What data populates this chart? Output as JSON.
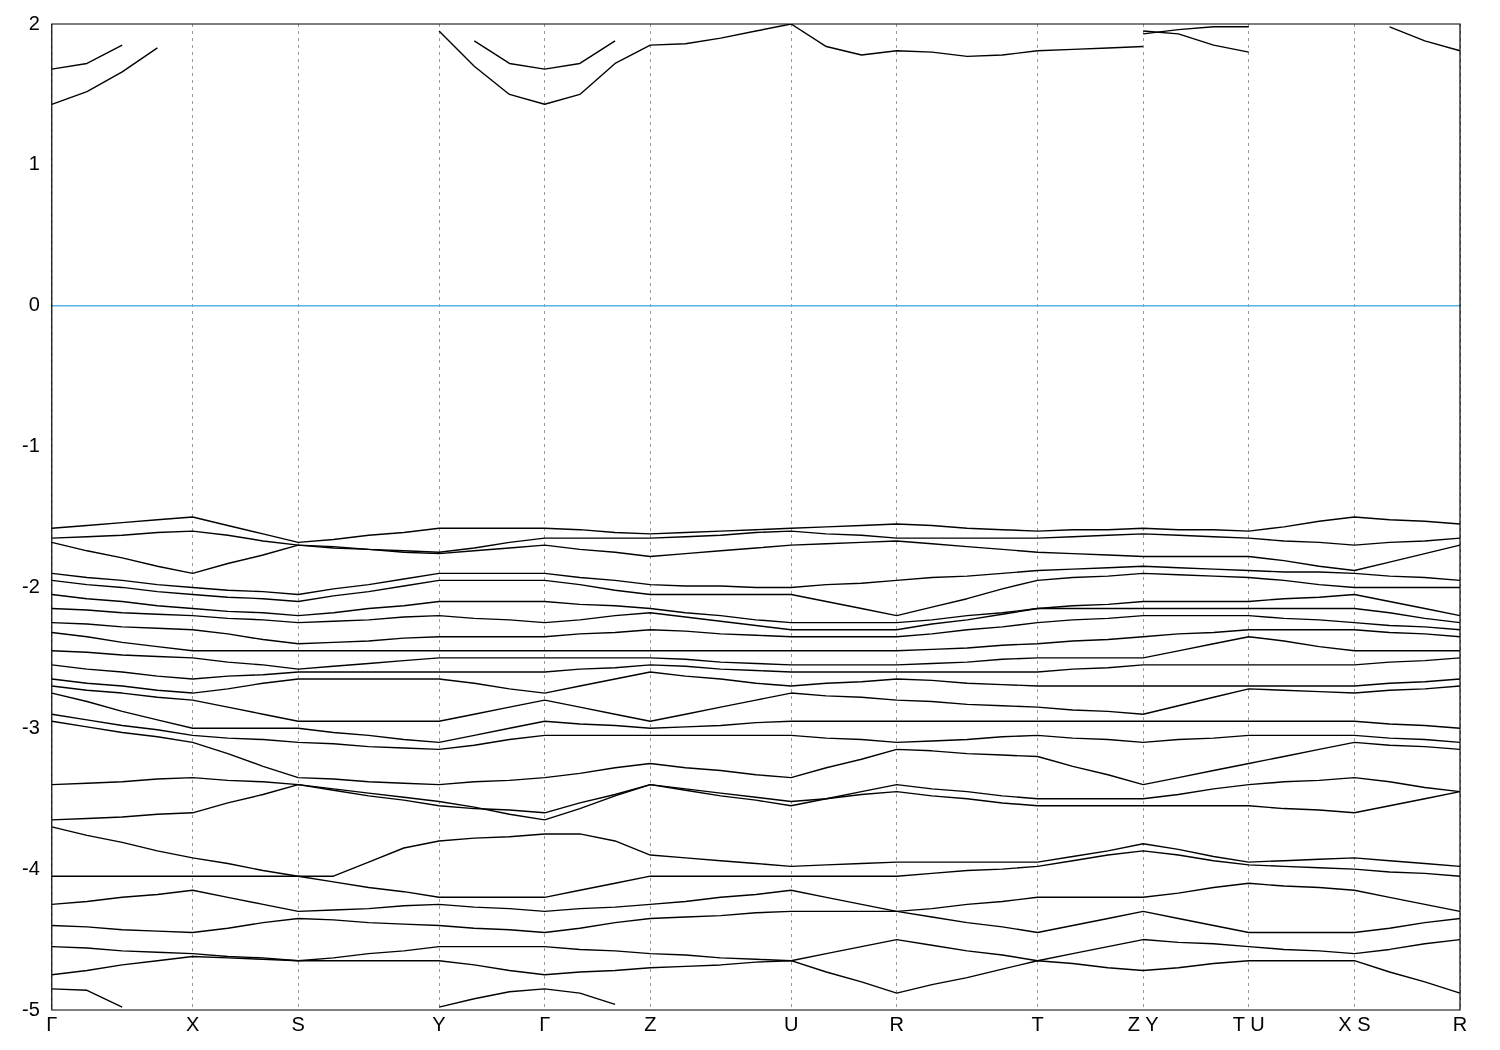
{
  "chart_data": {
    "type": "line",
    "ylim": [
      -5,
      2
    ],
    "categories": [
      "Γ",
      null,
      null,
      null,
      "X",
      null,
      null,
      "S",
      null,
      null,
      null,
      "Y",
      null,
      null,
      "Γ",
      null,
      null,
      "Z",
      null,
      null,
      null,
      "U",
      null,
      null,
      "R",
      null,
      null,
      null,
      "T",
      null,
      null,
      "Z Y",
      null,
      null,
      "T U",
      null,
      null,
      "X S",
      null,
      null,
      "R"
    ],
    "yticks": [
      -5,
      -4,
      -3,
      -2,
      -1,
      0,
      1,
      2
    ],
    "grid": "x",
    "marker": "none",
    "line_style": "solid",
    "ref_lines": [
      {
        "axis": "y",
        "value": 0,
        "color": "#56b4e9"
      }
    ],
    "series": [
      {
        "color": "#000000",
        "values": [
          1.43,
          1.52,
          1.66,
          1.83,
          null,
          null,
          null,
          null,
          null,
          null,
          null,
          null,
          null,
          null,
          null,
          null,
          null,
          null,
          null,
          null,
          null,
          null,
          null,
          null,
          null,
          null,
          null,
          null,
          null,
          null,
          null,
          null,
          null,
          null,
          null,
          null,
          null,
          null,
          null,
          null,
          null
        ]
      },
      {
        "color": "#000000",
        "values": [
          1.68,
          1.72,
          1.85,
          null,
          null,
          null,
          null,
          null,
          null,
          null,
          null,
          null,
          null,
          null,
          null,
          null,
          null,
          null,
          null,
          null,
          null,
          null,
          null,
          null,
          null,
          null,
          null,
          null,
          null,
          null,
          null,
          null,
          null,
          null,
          null,
          null,
          null,
          null,
          null,
          null,
          null
        ]
      },
      {
        "color": "#000000",
        "values": [
          null,
          null,
          null,
          null,
          null,
          null,
          null,
          null,
          null,
          null,
          null,
          1.95,
          1.7,
          1.5,
          1.43,
          1.5,
          1.72,
          1.85,
          1.86,
          1.9,
          1.95,
          2.0,
          1.84,
          1.78,
          1.81,
          1.8,
          1.77,
          1.78,
          1.81,
          1.82,
          1.83,
          1.84,
          null,
          null,
          null,
          null,
          null,
          null,
          null,
          null,
          null
        ]
      },
      {
        "color": "#000000",
        "values": [
          null,
          null,
          null,
          null,
          null,
          null,
          null,
          null,
          null,
          null,
          null,
          null,
          1.88,
          1.72,
          1.68,
          1.72,
          1.88,
          null,
          null,
          null,
          null,
          null,
          null,
          null,
          null,
          null,
          null,
          null,
          null,
          null,
          null,
          null,
          null,
          null,
          null,
          null,
          null,
          null,
          null,
          null,
          null
        ]
      },
      {
        "color": "#000000",
        "values": [
          null,
          null,
          null,
          null,
          null,
          null,
          null,
          null,
          null,
          null,
          null,
          null,
          null,
          null,
          null,
          null,
          null,
          null,
          null,
          null,
          null,
          null,
          null,
          null,
          null,
          null,
          null,
          null,
          null,
          null,
          null,
          1.95,
          1.93,
          1.85,
          1.8,
          null,
          null,
          null,
          null,
          null,
          null
        ]
      },
      {
        "color": "#000000",
        "values": [
          null,
          null,
          null,
          null,
          null,
          null,
          null,
          null,
          null,
          null,
          null,
          null,
          null,
          null,
          null,
          null,
          null,
          null,
          null,
          null,
          null,
          null,
          null,
          null,
          null,
          null,
          null,
          null,
          null,
          null,
          null,
          1.93,
          1.96,
          1.98,
          1.98,
          null,
          null,
          null,
          null,
          null,
          null
        ]
      },
      {
        "color": "#000000",
        "values": [
          null,
          null,
          null,
          null,
          null,
          null,
          null,
          null,
          null,
          null,
          null,
          null,
          null,
          null,
          null,
          null,
          null,
          null,
          null,
          null,
          null,
          null,
          null,
          null,
          null,
          null,
          null,
          null,
          null,
          null,
          null,
          null,
          null,
          null,
          null,
          null,
          null,
          null,
          1.98,
          1.88,
          1.81
        ]
      },
      {
        "color": "#000000",
        "values": [
          -1.58,
          -1.56,
          -1.54,
          -1.52,
          -1.5,
          -1.56,
          -1.62,
          -1.68,
          -1.66,
          -1.63,
          -1.61,
          -1.58,
          -1.58,
          -1.58,
          -1.58,
          -1.59,
          -1.61,
          -1.62,
          -1.61,
          -1.6,
          -1.59,
          -1.58,
          -1.57,
          -1.56,
          -1.55,
          -1.56,
          -1.58,
          -1.59,
          -1.6,
          -1.59,
          -1.59,
          -1.58,
          -1.59,
          -1.59,
          -1.6,
          -1.57,
          -1.53,
          -1.5,
          -1.52,
          -1.53,
          -1.55
        ]
      },
      {
        "color": "#000000",
        "values": [
          -1.65,
          -1.64,
          -1.63,
          -1.61,
          -1.6,
          -1.63,
          -1.67,
          -1.7,
          -1.71,
          -1.73,
          -1.74,
          -1.75,
          -1.72,
          -1.68,
          -1.65,
          -1.65,
          -1.65,
          -1.65,
          -1.64,
          -1.63,
          -1.61,
          -1.6,
          -1.62,
          -1.63,
          -1.65,
          -1.65,
          -1.65,
          -1.65,
          -1.65,
          -1.64,
          -1.63,
          -1.62,
          -1.63,
          -1.64,
          -1.65,
          -1.67,
          -1.68,
          -1.7,
          -1.68,
          -1.67,
          -1.65
        ]
      },
      {
        "color": "#000000",
        "values": [
          -1.68,
          -1.74,
          -1.79,
          -1.85,
          -1.9,
          -1.83,
          -1.77,
          -1.7,
          -1.72,
          -1.73,
          -1.75,
          -1.76,
          -1.74,
          -1.72,
          -1.7,
          -1.73,
          -1.75,
          -1.78,
          -1.76,
          -1.74,
          -1.72,
          -1.7,
          -1.69,
          -1.68,
          -1.67,
          -1.69,
          -1.71,
          -1.73,
          -1.75,
          -1.76,
          -1.77,
          -1.78,
          -1.78,
          -1.78,
          -1.78,
          -1.81,
          -1.85,
          -1.88,
          -1.82,
          -1.76,
          -1.7
        ]
      },
      {
        "color": "#000000",
        "values": [
          -1.9,
          -1.93,
          -1.95,
          -1.98,
          -2.0,
          -2.02,
          -2.03,
          -2.05,
          -2.01,
          -1.98,
          -1.94,
          -1.9,
          -1.9,
          -1.9,
          -1.9,
          -1.93,
          -1.95,
          -1.98,
          -1.99,
          -1.99,
          -2.0,
          -2.0,
          -1.98,
          -1.97,
          -1.95,
          -1.93,
          -1.92,
          -1.9,
          -1.88,
          -1.87,
          -1.86,
          -1.85,
          -1.86,
          -1.87,
          -1.88,
          -1.89,
          -1.89,
          -1.9,
          -1.92,
          -1.93,
          -1.95
        ]
      },
      {
        "color": "#000000",
        "values": [
          -1.95,
          -1.98,
          -2.0,
          -2.03,
          -2.05,
          -2.07,
          -2.08,
          -2.1,
          -2.06,
          -2.03,
          -1.99,
          -1.95,
          -1.95,
          -1.95,
          -1.95,
          -1.98,
          -2.02,
          -2.05,
          -2.05,
          -2.05,
          -2.05,
          -2.05,
          -2.1,
          -2.15,
          -2.2,
          -2.14,
          -2.08,
          -2.01,
          -1.95,
          -1.93,
          -1.92,
          -1.9,
          -1.91,
          -1.92,
          -1.93,
          -1.95,
          -1.98,
          -2.0,
          -2.0,
          -2.0,
          -2.0
        ]
      },
      {
        "color": "#000000",
        "values": [
          -2.05,
          -2.08,
          -2.1,
          -2.13,
          -2.15,
          -2.17,
          -2.18,
          -2.2,
          -2.18,
          -2.15,
          -2.13,
          -2.1,
          -2.1,
          -2.1,
          -2.1,
          -2.12,
          -2.13,
          -2.15,
          -2.18,
          -2.2,
          -2.23,
          -2.25,
          -2.25,
          -2.25,
          -2.25,
          -2.23,
          -2.2,
          -2.18,
          -2.15,
          -2.13,
          -2.12,
          -2.1,
          -2.1,
          -2.1,
          -2.1,
          -2.08,
          -2.07,
          -2.05,
          -2.1,
          -2.15,
          -2.2
        ]
      },
      {
        "color": "#000000",
        "values": [
          -2.15,
          -2.16,
          -2.18,
          -2.19,
          -2.2,
          -2.22,
          -2.23,
          -2.25,
          -2.24,
          -2.23,
          -2.21,
          -2.2,
          -2.22,
          -2.23,
          -2.25,
          -2.23,
          -2.2,
          -2.18,
          -2.21,
          -2.24,
          -2.27,
          -2.3,
          -2.3,
          -2.3,
          -2.3,
          -2.26,
          -2.23,
          -2.19,
          -2.15,
          -2.15,
          -2.15,
          -2.15,
          -2.15,
          -2.15,
          -2.15,
          -2.15,
          -2.15,
          -2.15,
          -2.18,
          -2.22,
          -2.25
        ]
      },
      {
        "color": "#000000",
        "values": [
          -2.25,
          -2.26,
          -2.28,
          -2.29,
          -2.3,
          -2.33,
          -2.37,
          -2.4,
          -2.39,
          -2.38,
          -2.36,
          -2.35,
          -2.35,
          -2.35,
          -2.35,
          -2.33,
          -2.32,
          -2.3,
          -2.31,
          -2.33,
          -2.34,
          -2.35,
          -2.35,
          -2.35,
          -2.35,
          -2.33,
          -2.3,
          -2.28,
          -2.25,
          -2.23,
          -2.22,
          -2.2,
          -2.2,
          -2.2,
          -2.2,
          -2.22,
          -2.23,
          -2.25,
          -2.27,
          -2.28,
          -2.3
        ]
      },
      {
        "color": "#000000",
        "values": [
          -2.32,
          -2.35,
          -2.39,
          -2.42,
          -2.45,
          -2.45,
          -2.45,
          -2.45,
          -2.45,
          -2.45,
          -2.45,
          -2.45,
          -2.45,
          -2.45,
          -2.45,
          -2.45,
          -2.45,
          -2.45,
          -2.45,
          -2.45,
          -2.45,
          -2.45,
          -2.45,
          -2.45,
          -2.45,
          -2.44,
          -2.43,
          -2.41,
          -2.4,
          -2.38,
          -2.37,
          -2.35,
          -2.33,
          -2.32,
          -2.3,
          -2.3,
          -2.3,
          -2.3,
          -2.32,
          -2.33,
          -2.35
        ]
      },
      {
        "color": "#000000",
        "values": [
          -2.45,
          -2.46,
          -2.48,
          -2.49,
          -2.5,
          -2.53,
          -2.55,
          -2.58,
          -2.56,
          -2.54,
          -2.52,
          -2.5,
          -2.5,
          -2.5,
          -2.5,
          -2.5,
          -2.5,
          -2.5,
          -2.51,
          -2.53,
          -2.54,
          -2.55,
          -2.55,
          -2.55,
          -2.55,
          -2.54,
          -2.53,
          -2.51,
          -2.5,
          -2.5,
          -2.5,
          -2.5,
          -2.45,
          -2.4,
          -2.35,
          -2.38,
          -2.42,
          -2.45,
          -2.45,
          -2.45,
          -2.45
        ]
      },
      {
        "color": "#000000",
        "values": [
          -2.55,
          -2.58,
          -2.6,
          -2.63,
          -2.65,
          -2.63,
          -2.62,
          -2.6,
          -2.6,
          -2.6,
          -2.6,
          -2.6,
          -2.6,
          -2.6,
          -2.6,
          -2.58,
          -2.57,
          -2.55,
          -2.56,
          -2.58,
          -2.59,
          -2.6,
          -2.6,
          -2.6,
          -2.6,
          -2.6,
          -2.6,
          -2.6,
          -2.6,
          -2.58,
          -2.57,
          -2.55,
          -2.55,
          -2.55,
          -2.55,
          -2.55,
          -2.55,
          -2.55,
          -2.53,
          -2.52,
          -2.5
        ]
      },
      {
        "color": "#000000",
        "values": [
          -2.65,
          -2.68,
          -2.7,
          -2.73,
          -2.75,
          -2.72,
          -2.68,
          -2.65,
          -2.65,
          -2.65,
          -2.65,
          -2.65,
          -2.68,
          -2.72,
          -2.75,
          -2.7,
          -2.65,
          -2.6,
          -2.63,
          -2.65,
          -2.68,
          -2.7,
          -2.68,
          -2.67,
          -2.65,
          -2.66,
          -2.68,
          -2.69,
          -2.7,
          -2.7,
          -2.7,
          -2.7,
          -2.7,
          -2.7,
          -2.7,
          -2.7,
          -2.7,
          -2.7,
          -2.68,
          -2.67,
          -2.65
        ]
      },
      {
        "color": "#000000",
        "values": [
          -2.7,
          -2.73,
          -2.75,
          -2.78,
          -2.8,
          -2.85,
          -2.9,
          -2.95,
          -2.95,
          -2.95,
          -2.95,
          -2.95,
          -2.9,
          -2.85,
          -2.8,
          -2.85,
          -2.9,
          -2.95,
          -2.9,
          -2.85,
          -2.8,
          -2.75,
          -2.77,
          -2.78,
          -2.8,
          -2.81,
          -2.83,
          -2.84,
          -2.85,
          -2.87,
          -2.88,
          -2.9,
          -2.84,
          -2.78,
          -2.72,
          -2.73,
          -2.74,
          -2.75,
          -2.73,
          -2.72,
          -2.7
        ]
      },
      {
        "color": "#000000",
        "values": [
          -2.75,
          -2.81,
          -2.88,
          -2.94,
          -3.0,
          -3.0,
          -3.0,
          -3.0,
          -3.03,
          -3.05,
          -3.08,
          -3.1,
          -3.05,
          -3.0,
          -2.95,
          -2.97,
          -2.98,
          -3.0,
          -2.99,
          -2.98,
          -2.96,
          -2.95,
          -2.95,
          -2.95,
          -2.95,
          -2.95,
          -2.95,
          -2.95,
          -2.95,
          -2.95,
          -2.95,
          -2.95,
          -2.95,
          -2.95,
          -2.95,
          -2.95,
          -2.95,
          -2.95,
          -2.97,
          -2.98,
          -3.0
        ]
      },
      {
        "color": "#000000",
        "values": [
          -2.9,
          -2.94,
          -2.98,
          -3.01,
          -3.05,
          -3.07,
          -3.08,
          -3.1,
          -3.11,
          -3.13,
          -3.14,
          -3.15,
          -3.12,
          -3.08,
          -3.05,
          -3.05,
          -3.05,
          -3.05,
          -3.05,
          -3.05,
          -3.05,
          -3.05,
          -3.07,
          -3.08,
          -3.1,
          -3.09,
          -3.08,
          -3.06,
          -3.05,
          -3.07,
          -3.08,
          -3.1,
          -3.08,
          -3.07,
          -3.05,
          -3.05,
          -3.05,
          -3.05,
          -3.07,
          -3.08,
          -3.1
        ]
      },
      {
        "color": "#000000",
        "values": [
          -2.95,
          -2.99,
          -3.03,
          -3.06,
          -3.1,
          -3.18,
          -3.27,
          -3.35,
          -3.36,
          -3.38,
          -3.39,
          -3.4,
          -3.38,
          -3.37,
          -3.35,
          -3.32,
          -3.28,
          -3.25,
          -3.28,
          -3.3,
          -3.33,
          -3.35,
          -3.28,
          -3.22,
          -3.15,
          -3.16,
          -3.18,
          -3.19,
          -3.2,
          -3.27,
          -3.33,
          -3.4,
          -3.35,
          -3.3,
          -3.25,
          -3.2,
          -3.15,
          -3.1,
          -3.12,
          -3.13,
          -3.15
        ]
      },
      {
        "color": "#000000",
        "values": [
          -3.4,
          -3.39,
          -3.38,
          -3.36,
          -3.35,
          -3.37,
          -3.38,
          -3.4,
          -3.44,
          -3.48,
          -3.51,
          -3.55,
          -3.57,
          -3.58,
          -3.6,
          -3.53,
          -3.47,
          -3.4,
          -3.44,
          -3.48,
          -3.51,
          -3.55,
          -3.5,
          -3.45,
          -3.4,
          -3.43,
          -3.45,
          -3.48,
          -3.5,
          -3.5,
          -3.5,
          -3.5,
          -3.47,
          -3.43,
          -3.4,
          -3.38,
          -3.37,
          -3.35,
          -3.38,
          -3.42,
          -3.45
        ]
      },
      {
        "color": "#000000",
        "values": [
          -3.65,
          -3.64,
          -3.63,
          -3.61,
          -3.6,
          -3.53,
          -3.47,
          -3.4,
          -3.43,
          -3.46,
          -3.49,
          -3.52,
          -3.56,
          -3.61,
          -3.65,
          -3.57,
          -3.48,
          -3.4,
          -3.43,
          -3.46,
          -3.49,
          -3.52,
          -3.5,
          -3.47,
          -3.45,
          -3.48,
          -3.5,
          -3.53,
          -3.55,
          -3.55,
          -3.55,
          -3.55,
          -3.55,
          -3.55,
          -3.55,
          -3.57,
          -3.58,
          -3.6,
          -3.55,
          -3.5,
          -3.45
        ]
      },
      {
        "color": "#000000",
        "values": [
          -3.7,
          -3.76,
          -3.81,
          -3.87,
          -3.92,
          -3.96,
          -4.01,
          -4.05,
          -4.05,
          -3.95,
          -3.85,
          -3.8,
          -3.78,
          -3.77,
          -3.75,
          -3.75,
          -3.8,
          -3.9,
          -3.92,
          -3.94,
          -3.96,
          -3.98,
          -3.97,
          -3.96,
          -3.95,
          -3.95,
          -3.95,
          -3.95,
          -3.95,
          -3.91,
          -3.87,
          -3.82,
          -3.86,
          -3.91,
          -3.95,
          -3.94,
          -3.93,
          -3.92,
          -3.94,
          -3.96,
          -3.98
        ]
      },
      {
        "color": "#000000",
        "values": [
          -4.05,
          -4.05,
          -4.05,
          -4.05,
          -4.05,
          -4.05,
          -4.05,
          -4.05,
          -4.09,
          -4.13,
          -4.16,
          -4.2,
          -4.2,
          -4.2,
          -4.2,
          -4.15,
          -4.1,
          -4.05,
          -4.05,
          -4.05,
          -4.05,
          -4.05,
          -4.05,
          -4.05,
          -4.05,
          -4.03,
          -4.01,
          -4.0,
          -3.98,
          -3.94,
          -3.9,
          -3.87,
          -3.9,
          -3.94,
          -3.97,
          -3.98,
          -3.99,
          -4.0,
          -4.02,
          -4.03,
          -4.05
        ]
      },
      {
        "color": "#000000",
        "values": [
          -4.25,
          -4.23,
          -4.2,
          -4.18,
          -4.15,
          -4.2,
          -4.25,
          -4.3,
          -4.29,
          -4.28,
          -4.26,
          -4.25,
          -4.27,
          -4.28,
          -4.3,
          -4.28,
          -4.27,
          -4.25,
          -4.23,
          -4.2,
          -4.18,
          -4.15,
          -4.2,
          -4.25,
          -4.3,
          -4.28,
          -4.25,
          -4.23,
          -4.2,
          -4.2,
          -4.2,
          -4.2,
          -4.17,
          -4.13,
          -4.1,
          -4.12,
          -4.13,
          -4.15,
          -4.2,
          -4.25,
          -4.3
        ]
      },
      {
        "color": "#000000",
        "values": [
          -4.4,
          -4.41,
          -4.43,
          -4.44,
          -4.45,
          -4.42,
          -4.38,
          -4.35,
          -4.36,
          -4.38,
          -4.39,
          -4.4,
          -4.42,
          -4.43,
          -4.45,
          -4.42,
          -4.38,
          -4.35,
          -4.34,
          -4.33,
          -4.31,
          -4.3,
          -4.3,
          -4.3,
          -4.3,
          -4.34,
          -4.38,
          -4.41,
          -4.45,
          -4.4,
          -4.35,
          -4.3,
          -4.35,
          -4.4,
          -4.45,
          -4.45,
          -4.45,
          -4.45,
          -4.42,
          -4.38,
          -4.35
        ]
      },
      {
        "color": "#000000",
        "values": [
          -4.55,
          -4.56,
          -4.58,
          -4.59,
          -4.6,
          -4.62,
          -4.63,
          -4.65,
          -4.63,
          -4.6,
          -4.58,
          -4.55,
          -4.55,
          -4.55,
          -4.55,
          -4.57,
          -4.58,
          -4.6,
          -4.61,
          -4.63,
          -4.64,
          -4.65,
          -4.6,
          -4.55,
          -4.5,
          -4.54,
          -4.58,
          -4.61,
          -4.65,
          -4.6,
          -4.55,
          -4.5,
          -4.52,
          -4.53,
          -4.55,
          -4.57,
          -4.58,
          -4.6,
          -4.57,
          -4.53,
          -4.5
        ]
      },
      {
        "color": "#000000",
        "values": [
          -4.75,
          -4.72,
          -4.68,
          -4.65,
          -4.62,
          -4.63,
          -4.64,
          -4.65,
          -4.65,
          -4.65,
          -4.65,
          -4.65,
          -4.68,
          -4.72,
          -4.75,
          -4.73,
          -4.72,
          -4.7,
          -4.69,
          -4.68,
          -4.66,
          -4.65,
          -4.73,
          -4.8,
          -4.88,
          -4.82,
          -4.77,
          -4.71,
          -4.65,
          -4.67,
          -4.7,
          -4.72,
          -4.7,
          -4.67,
          -4.65,
          -4.65,
          -4.65,
          -4.65,
          -4.73,
          -4.8,
          -4.88
        ]
      },
      {
        "color": "#000000",
        "values": [
          -4.85,
          -4.86,
          -4.98,
          null,
          null,
          null,
          null,
          null,
          null,
          null,
          null,
          null,
          null,
          null,
          null,
          null,
          null,
          null,
          null,
          null,
          null,
          null,
          null,
          null,
          null,
          null,
          null,
          null,
          null,
          null,
          null,
          null,
          null,
          null,
          null,
          null,
          null,
          null,
          null,
          null,
          null
        ]
      },
      {
        "color": "#000000",
        "values": [
          null,
          null,
          null,
          null,
          null,
          null,
          null,
          null,
          null,
          null,
          null,
          -4.98,
          -4.92,
          -4.87,
          -4.85,
          -4.88,
          -4.96,
          null,
          null,
          null,
          null,
          null,
          null,
          null,
          null,
          null,
          null,
          null,
          null,
          null,
          null,
          null,
          null,
          null,
          null,
          null,
          null,
          null,
          null,
          null,
          null
        ]
      }
    ]
  }
}
